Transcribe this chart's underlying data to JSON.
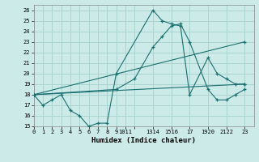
{
  "bg_color": "#cceae8",
  "grid_color": "#aad4d0",
  "line_color": "#1a7070",
  "xlabel": "Humidex (Indice chaleur)",
  "xlim": [
    0,
    24
  ],
  "ylim": [
    15,
    26.5
  ],
  "yticks": [
    15,
    16,
    17,
    18,
    19,
    20,
    21,
    22,
    23,
    24,
    25,
    26
  ],
  "xtick_positions": [
    0,
    1,
    2,
    3,
    4,
    5,
    6,
    7,
    8,
    9,
    10,
    11,
    13,
    15,
    17,
    19,
    21,
    23
  ],
  "xtick_labels": [
    "0",
    "1",
    "2",
    "3",
    "4",
    "5",
    "6",
    "7",
    "8",
    "9",
    "1011",
    "",
    "1314",
    "1516",
    "17",
    "1920",
    "2122",
    "23"
  ],
  "line1_x": [
    0,
    1,
    2,
    3,
    4,
    5,
    6,
    7,
    8,
    9,
    13,
    14,
    15,
    16,
    17,
    19,
    20,
    21,
    22,
    23
  ],
  "line1_y": [
    18,
    17,
    17.5,
    18,
    16.5,
    16,
    15,
    15.3,
    15.3,
    20,
    26,
    25,
    24.7,
    24.5,
    18,
    21.5,
    20,
    19.5,
    19,
    19
  ],
  "line2_x": [
    0,
    9,
    11,
    13,
    14,
    15,
    16,
    17,
    19,
    20,
    21,
    22,
    23
  ],
  "line2_y": [
    18,
    18.5,
    19.5,
    22.5,
    23.5,
    24.5,
    24.7,
    23,
    18.5,
    17.5,
    17.5,
    18,
    18.5
  ],
  "line3_x": [
    0,
    23
  ],
  "line3_y": [
    18,
    23
  ],
  "line4_x": [
    0,
    23
  ],
  "line4_y": [
    18,
    19
  ]
}
